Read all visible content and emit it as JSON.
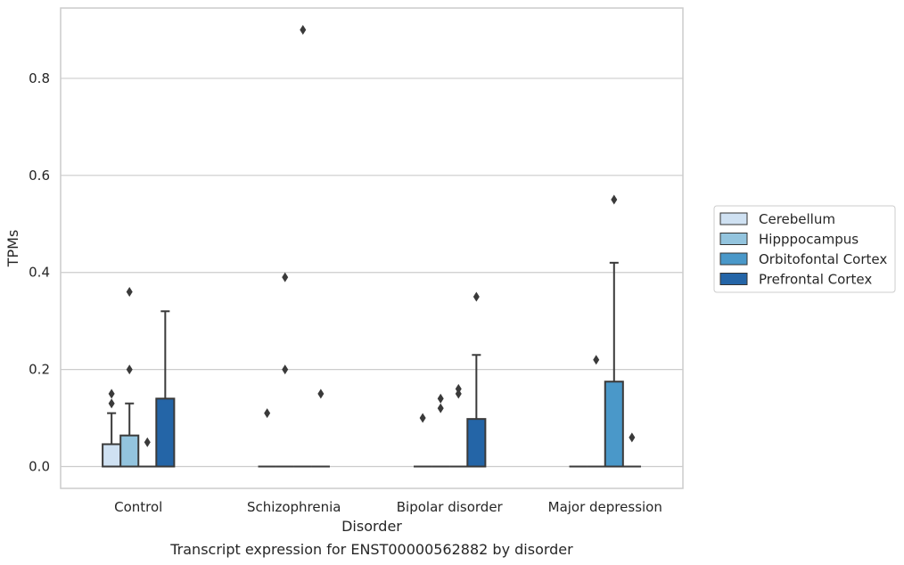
{
  "chart_data": {
    "type": "box",
    "title": "",
    "caption": "Transcript expression for ENST00000562882 by disorder",
    "xlabel": "Disorder",
    "ylabel": "TPMs",
    "ylim": [
      -0.045,
      0.945
    ],
    "yticks": [
      0.0,
      0.2,
      0.4,
      0.6,
      0.8
    ],
    "ytick_labels": [
      "0.0",
      "0.2",
      "0.4",
      "0.6",
      "0.8"
    ],
    "grid": true,
    "legend_position": "right",
    "categories": [
      "Control",
      "Schizophrenia",
      "Bipolar disorder",
      "Major depression"
    ],
    "series": [
      {
        "name": "Cerebellum",
        "color": "#cfe1f2",
        "boxes": [
          {
            "q1": 0.0,
            "median": 0.0,
            "q3": 0.046,
            "whisker_low": 0.0,
            "whisker_high": 0.11,
            "outliers": [
              0.13,
              0.15
            ]
          },
          {
            "q1": 0.0,
            "median": 0.0,
            "q3": 0.0,
            "whisker_low": 0.0,
            "whisker_high": 0.0,
            "outliers": [
              0.11
            ]
          },
          {
            "q1": 0.0,
            "median": 0.0,
            "q3": 0.0,
            "whisker_low": 0.0,
            "whisker_high": 0.0,
            "outliers": [
              0.1
            ]
          },
          {
            "q1": 0.0,
            "median": 0.0,
            "q3": 0.0,
            "whisker_low": 0.0,
            "whisker_high": 0.0,
            "outliers": []
          }
        ]
      },
      {
        "name": "Hipppocampus",
        "color": "#93c4de",
        "boxes": [
          {
            "q1": 0.0,
            "median": 0.0,
            "q3": 0.064,
            "whisker_low": 0.0,
            "whisker_high": 0.13,
            "outliers": [
              0.2,
              0.36
            ]
          },
          {
            "q1": 0.0,
            "median": 0.0,
            "q3": 0.0,
            "whisker_low": 0.0,
            "whisker_high": 0.0,
            "outliers": [
              0.2,
              0.39
            ]
          },
          {
            "q1": 0.0,
            "median": 0.0,
            "q3": 0.0,
            "whisker_low": 0.0,
            "whisker_high": 0.0,
            "outliers": [
              0.12,
              0.14
            ]
          },
          {
            "q1": 0.0,
            "median": 0.0,
            "q3": 0.0,
            "whisker_low": 0.0,
            "whisker_high": 0.0,
            "outliers": [
              0.22
            ]
          }
        ]
      },
      {
        "name": "Orbitofontal Cortex",
        "color": "#4a98c9",
        "boxes": [
          {
            "q1": 0.0,
            "median": 0.0,
            "q3": 0.0,
            "whisker_low": 0.0,
            "whisker_high": 0.0,
            "outliers": [
              0.05
            ]
          },
          {
            "q1": 0.0,
            "median": 0.0,
            "q3": 0.0,
            "whisker_low": 0.0,
            "whisker_high": 0.0,
            "outliers": [
              0.9
            ]
          },
          {
            "q1": 0.0,
            "median": 0.0,
            "q3": 0.0,
            "whisker_low": 0.0,
            "whisker_high": 0.0,
            "outliers": [
              0.15,
              0.16
            ]
          },
          {
            "q1": 0.0,
            "median": 0.0,
            "q3": 0.175,
            "whisker_low": 0.0,
            "whisker_high": 0.42,
            "outliers": [
              0.55
            ]
          }
        ]
      },
      {
        "name": "Prefrontal Cortex",
        "color": "#2465a7",
        "boxes": [
          {
            "q1": 0.0,
            "median": 0.0,
            "q3": 0.14,
            "whisker_low": 0.0,
            "whisker_high": 0.32,
            "outliers": []
          },
          {
            "q1": 0.0,
            "median": 0.0,
            "q3": 0.0,
            "whisker_low": 0.0,
            "whisker_high": 0.0,
            "outliers": [
              0.15
            ]
          },
          {
            "q1": 0.0,
            "median": 0.0,
            "q3": 0.098,
            "whisker_low": 0.0,
            "whisker_high": 0.23,
            "outliers": [
              0.35
            ]
          },
          {
            "q1": 0.0,
            "median": 0.0,
            "q3": 0.0,
            "whisker_low": 0.0,
            "whisker_high": 0.0,
            "outliers": [
              0.06
            ]
          }
        ]
      }
    ]
  }
}
